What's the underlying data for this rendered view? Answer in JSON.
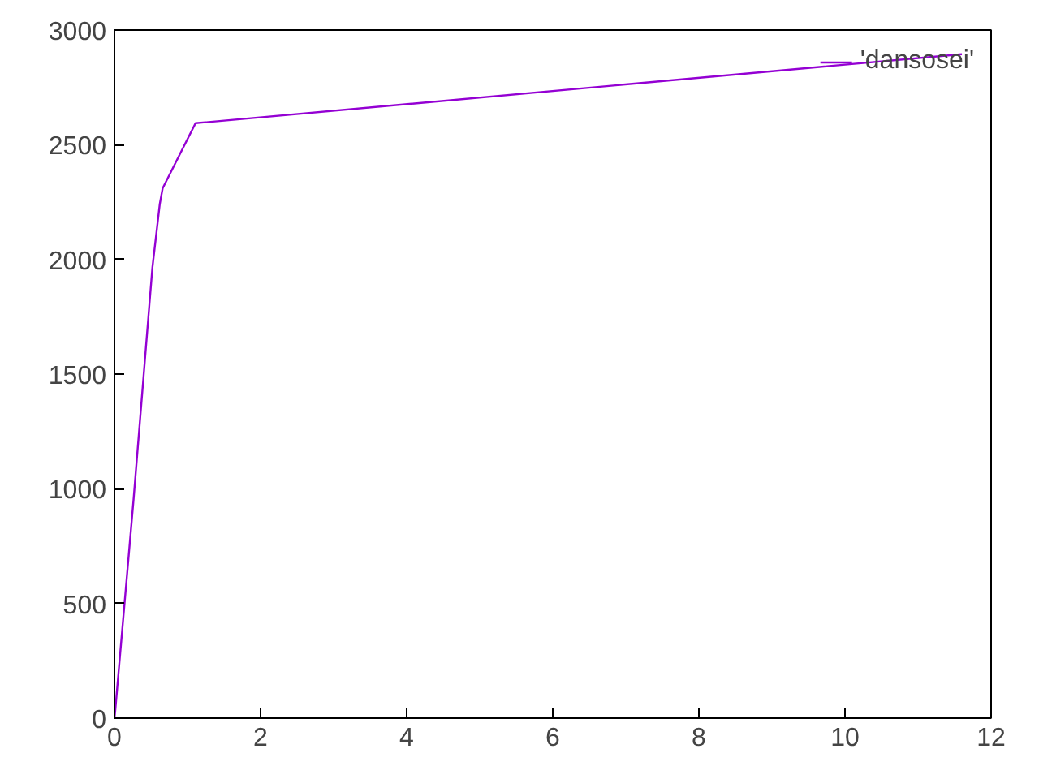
{
  "chart_data": {
    "type": "line",
    "x": [
      0,
      0.01,
      0.26,
      0.52,
      0.62,
      0.66,
      1.11,
      11.6
    ],
    "series": [
      {
        "name": "'dansosei'",
        "color": "#9400d3",
        "values": [
          0,
          30,
          947,
          1966,
          2240,
          2310,
          2594,
          2895
        ]
      }
    ],
    "xlim": [
      0,
      12
    ],
    "ylim": [
      0,
      3000
    ],
    "xticks": [
      0,
      2,
      4,
      6,
      8,
      10,
      12
    ],
    "yticks": [
      0,
      500,
      1000,
      1500,
      2000,
      2500,
      3000
    ],
    "legend": "top right",
    "grid": false,
    "line_style": "solid"
  }
}
